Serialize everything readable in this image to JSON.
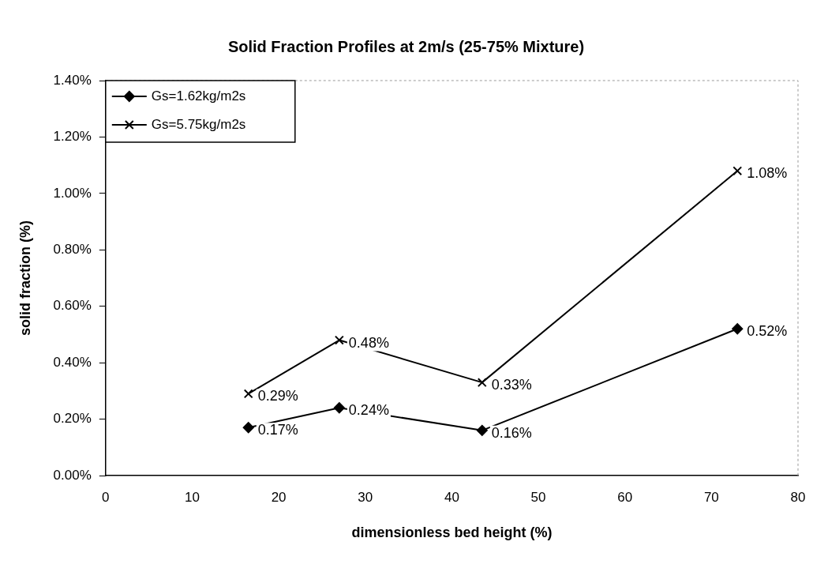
{
  "chart_data": {
    "type": "line",
    "title": "Solid Fraction Profiles at 2m/s (25-75% Mixture)",
    "xlabel": "dimensionless bed height (%)",
    "ylabel": "solid fraction (%)",
    "series": [
      {
        "name": "Gs=1.62kg/m2s",
        "color": "#000000",
        "marker": "diamond",
        "x": [
          16.5,
          27,
          43.5,
          73
        ],
        "values": [
          0.17,
          0.24,
          0.16,
          0.52
        ],
        "value_labels": [
          "0.17%",
          "0.24%",
          "0.16%",
          "0.52%"
        ]
      },
      {
        "name": "Gs=5.75kg/m2s",
        "color": "#000000",
        "marker": "cross",
        "x": [
          16.5,
          27,
          43.5,
          73
        ],
        "values": [
          0.29,
          0.48,
          0.33,
          1.08
        ],
        "value_labels": [
          "0.29%",
          "0.48%",
          "0.33%",
          "1.08%"
        ]
      }
    ],
    "xlim": [
      0,
      80
    ],
    "xticks": [
      0,
      10,
      20,
      30,
      40,
      50,
      60,
      70,
      80
    ],
    "ylim": [
      0,
      1.4
    ],
    "yticks": [
      {
        "value": 0,
        "label": "0.00%"
      },
      {
        "value": 0.2,
        "label": "0.20%"
      },
      {
        "value": 0.4,
        "label": "0.40%"
      },
      {
        "value": 0.6,
        "label": "0.60%"
      },
      {
        "value": 0.8,
        "label": "0.80%"
      },
      {
        "value": 1.0,
        "label": "1.00%"
      },
      {
        "value": 1.2,
        "label": "1.20%"
      },
      {
        "value": 1.4,
        "label": "1.40%"
      }
    ],
    "grid": false,
    "legend": "top left"
  }
}
